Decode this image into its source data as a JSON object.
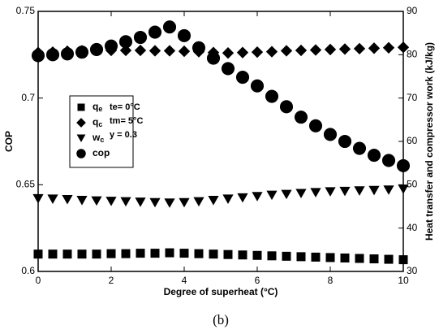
{
  "chart_data": {
    "type": "line",
    "x": [
      0,
      0.4,
      0.8,
      1.2,
      1.6,
      2.0,
      2.4,
      2.8,
      3.2,
      3.6,
      4.0,
      4.4,
      4.8,
      5.2,
      5.6,
      6.0,
      6.4,
      6.8,
      7.2,
      7.6,
      8.0,
      8.4,
      8.8,
      9.2,
      9.6,
      10
    ],
    "series": [
      {
        "name": "qe",
        "color": "#000000",
        "marker": "square",
        "axis": "y2",
        "values": [
          34.0,
          34.0,
          34.0,
          34.0,
          34.0,
          34.1,
          34.1,
          34.2,
          34.2,
          34.3,
          34.2,
          34.1,
          34.0,
          33.9,
          33.8,
          33.7,
          33.6,
          33.5,
          33.4,
          33.3,
          33.2,
          33.1,
          33.0,
          32.9,
          32.8,
          32.7
        ]
      },
      {
        "name": "qc",
        "color": "#000000",
        "marker": "diamond",
        "axis": "y2",
        "values": [
          80.5,
          80.6,
          80.8,
          80.9,
          81.0,
          81.0,
          81.0,
          81.0,
          80.9,
          80.9,
          80.8,
          80.7,
          80.5,
          80.4,
          80.5,
          80.6,
          80.7,
          80.9,
          81.0,
          81.1,
          81.2,
          81.3,
          81.4,
          81.5,
          81.6,
          81.7
        ]
      },
      {
        "name": "wc",
        "color": "#000000",
        "marker": "triangle-down",
        "axis": "y2",
        "values": [
          46.8,
          46.7,
          46.6,
          46.4,
          46.3,
          46.2,
          46.1,
          46.0,
          45.9,
          45.8,
          45.9,
          46.1,
          46.4,
          46.7,
          47.0,
          47.3,
          47.6,
          47.8,
          48.0,
          48.2,
          48.4,
          48.5,
          48.6,
          48.7,
          48.8,
          49.0
        ]
      },
      {
        "name": "cop",
        "color": "#000000",
        "marker": "circle",
        "axis": "y",
        "values": [
          0.7245,
          0.725,
          0.7255,
          0.7265,
          0.728,
          0.73,
          0.7325,
          0.735,
          0.738,
          0.741,
          0.736,
          0.729,
          0.723,
          0.717,
          0.712,
          0.707,
          0.701,
          0.695,
          0.689,
          0.684,
          0.679,
          0.675,
          0.671,
          0.667,
          0.664,
          0.661
        ]
      }
    ],
    "xlabel": "Degree of superheat (°C)",
    "ylabel": "COP",
    "y2label": "Heat transfer and compressor work (kJ/kg)",
    "xlim": [
      0,
      10
    ],
    "xticks": [
      0,
      2,
      4,
      6,
      8,
      10
    ],
    "ylim": [
      0.6,
      0.75
    ],
    "yticks": [
      0.6,
      0.65,
      0.7,
      0.75
    ],
    "y2lim": [
      30,
      90
    ],
    "y2ticks": [
      30,
      40,
      50,
      60,
      70,
      80,
      90
    ],
    "annotations": [
      "te= 0°C",
      "tm= 5°C",
      "y = 0.3"
    ],
    "caption": "(b)"
  }
}
